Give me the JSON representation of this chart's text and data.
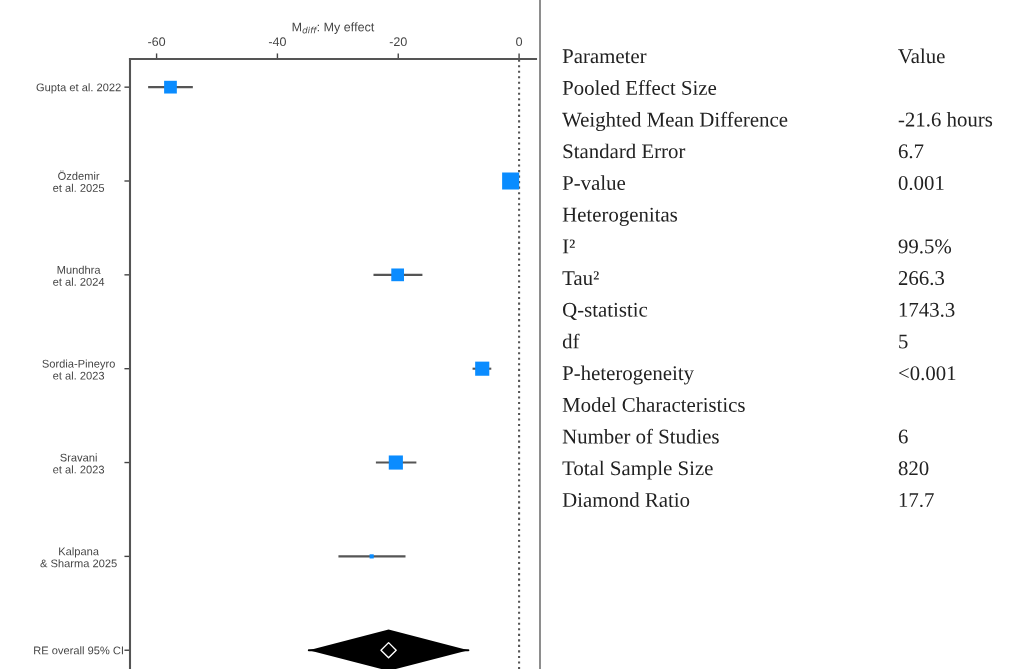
{
  "chart_data": [
    {
      "type": "scatter",
      "orientation": "horizontal",
      "xlabel": "M$_{diff}$: My effect",
      "categories": [
        "Gupta et al. 2022",
        "Özdemir\net al. 2025",
        "Mundhra\net al. 2024",
        "Sordia-Pineyro\net al. 2023",
        "Sravani\net al. 2023",
        "Kalpana\n& Sharma 2025",
        "RE overall 95% CI"
      ],
      "xlim": [
        -64.4,
        2.8
      ],
      "xticks": [
        -60,
        -40,
        -20,
        0
      ],
      "grid": false,
      "legend": false,
      "series": [
        {
          "type": "bubble",
          "marker": "square",
          "color": "#0a8cff",
          "values": [
            -57.7,
            -1.4,
            -20.1,
            -6.1,
            -20.4,
            -24.4,
            null
          ],
          "errors": [
            [
              -61.4,
              -54.0
            ],
            null,
            [
              -24.1,
              -16.0
            ],
            [
              -7.7,
              -4.6
            ],
            [
              -23.7,
              -17.0
            ],
            [
              -29.9,
              -18.8
            ],
            null
          ],
          "sizes": [
            0.56,
            1,
            0.56,
            0.69,
            0.69,
            0.06,
            null
          ]
        },
        {
          "type": "scatter",
          "marker": "diamond",
          "color": "#000000",
          "values": [
            null,
            null,
            null,
            null,
            null,
            null,
            -21.6
          ],
          "errors": [
            null,
            null,
            null,
            null,
            null,
            null,
            [
              -34.8,
              -8.4
            ]
          ]
        }
      ],
      "ref_lines": [
        {
          "axis": "x",
          "value": 0,
          "color": "#555555",
          "line_style": "dotted"
        }
      ]
    },
    {
      "type": "other",
      "categories": [
        "Parameter",
        "Pooled Effect Size",
        "Weighted Mean Difference",
        "Standard Error",
        "P-value",
        "Heterogenitas",
        "I²",
        "Tau²",
        "Q-statistic",
        "df",
        "P-heterogeneity",
        "Model Characteristics",
        "Number of Studies",
        "Total Sample Size",
        "Diamond Ratio"
      ],
      "value_labels": [
        "Value",
        null,
        "-21.6 hours",
        "6.7",
        "0.001",
        null,
        "99.5%",
        "266.3",
        "1743.3",
        "5",
        "<0.001",
        null,
        "6",
        "820",
        "17.7"
      ]
    }
  ]
}
